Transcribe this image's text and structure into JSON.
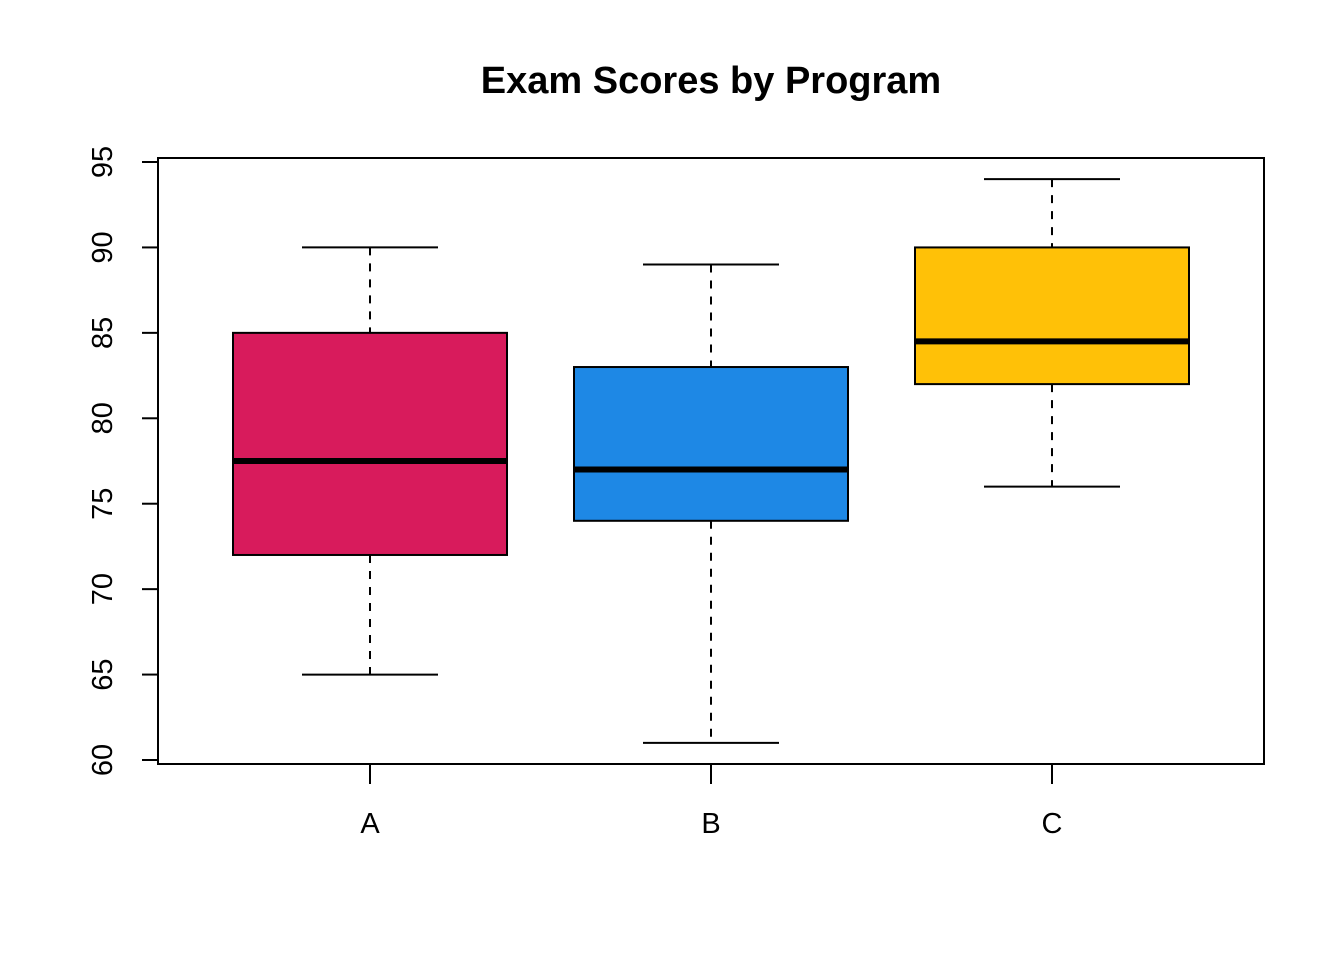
{
  "chart_data": {
    "type": "box",
    "title": "Exam Scores by Program",
    "xlabel": "",
    "ylabel": "",
    "ylim": [
      60,
      95
    ],
    "yticks": [
      "60",
      "65",
      "70",
      "75",
      "80",
      "85",
      "90",
      "95"
    ],
    "grid": false,
    "categories": [
      "A",
      "B",
      "C"
    ],
    "series": [
      {
        "category": "A",
        "min": 65,
        "q1": 72,
        "median": 77.5,
        "q3": 85,
        "max": 90,
        "color": "#D81B5C"
      },
      {
        "category": "B",
        "min": 61,
        "q1": 74,
        "median": 77,
        "q3": 83,
        "max": 89,
        "color": "#1E88E5"
      },
      {
        "category": "C",
        "min": 76,
        "q1": 82,
        "median": 84.5,
        "q3": 90,
        "max": 94,
        "color": "#FFC107"
      }
    ]
  }
}
